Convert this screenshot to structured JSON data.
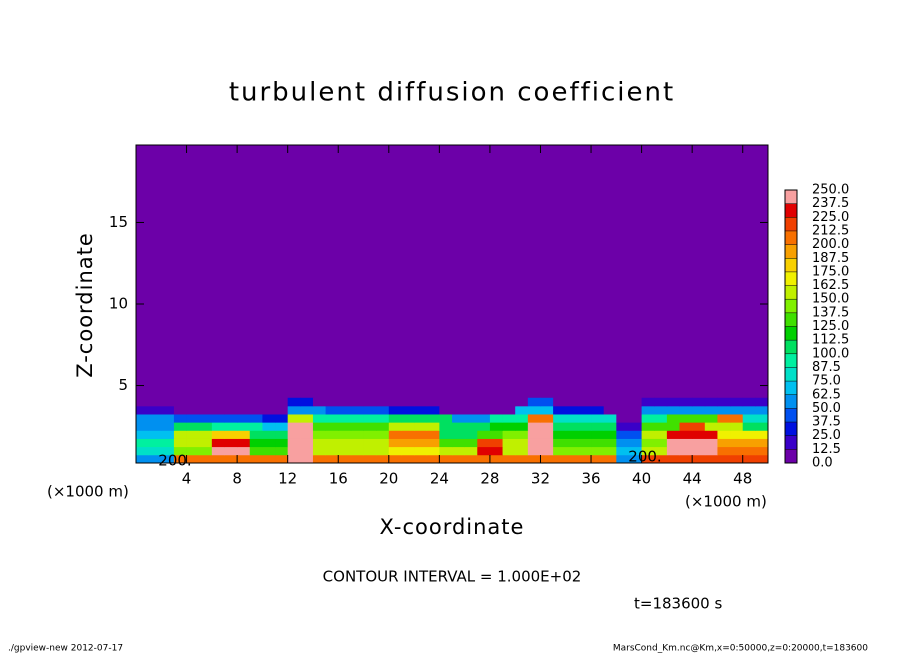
{
  "chart_data": {
    "type": "heatmap",
    "title": "turbulent diffusion coefficient",
    "x_label": "X-coordinate",
    "y_label": "Z-coordinate",
    "x_unit": "(×1000 m)",
    "y_unit": "(×1000 m)",
    "contour_interval": "CONTOUR INTERVAL = 1.000E+02",
    "time_label": "t=183600 s",
    "footer_left": "./gpview-new  2012-07-17",
    "footer_right": "MarsCond_Km.nc@Km,x=0:50000,z=0:20000,t=183600",
    "contour_labels": [
      "200.",
      "200."
    ],
    "xlim": [
      0,
      50
    ],
    "ylim": [
      0.25,
      19.75
    ],
    "xticks": [
      4,
      8,
      12,
      16,
      20,
      24,
      28,
      32,
      36,
      40,
      44,
      48
    ],
    "yticks": [
      5,
      10,
      15
    ],
    "x": [
      0.5,
      1.5,
      2.5,
      3.5,
      4.5,
      5.5,
      6.5,
      7.5,
      8.5,
      9.5,
      10.5,
      11.5,
      12.5,
      13.5,
      14.5,
      15.5,
      16.5,
      17.5,
      18.5,
      19.5,
      20.5,
      21.5,
      22.5,
      23.5,
      24.5,
      25.5,
      26.5,
      27.5,
      28.5,
      29.5,
      30.5,
      31.5,
      32.5,
      33.5,
      34.5,
      35.5,
      36.5,
      37.5,
      38.5,
      39.5,
      40.5,
      41.5,
      42.5,
      43.5,
      44.5,
      45.5,
      46.5,
      47.5,
      48.5,
      49.5
    ],
    "y": [
      0.5,
      1,
      1.5,
      2,
      2.5,
      3,
      3.5,
      4
    ],
    "z": [
      [
        60,
        60,
        60,
        210,
        210,
        210,
        210,
        210,
        210,
        210,
        210,
        210,
        250,
        250,
        200,
        200,
        200,
        200,
        200,
        200,
        200,
        200,
        200,
        200,
        200,
        200,
        200,
        200,
        200,
        200,
        200,
        200,
        200,
        200,
        200,
        200,
        200,
        200,
        60,
        60,
        220,
        220,
        220,
        220,
        220,
        220,
        220,
        220,
        220,
        220
      ],
      [
        80,
        80,
        80,
        140,
        140,
        140,
        250,
        250,
        250,
        130,
        130,
        130,
        250,
        250,
        160,
        160,
        160,
        160,
        160,
        160,
        170,
        170,
        170,
        170,
        150,
        150,
        150,
        230,
        230,
        160,
        160,
        250,
        250,
        140,
        140,
        140,
        140,
        140,
        70,
        70,
        160,
        160,
        250,
        250,
        250,
        250,
        200,
        200,
        200,
        200
      ],
      [
        90,
        90,
        90,
        160,
        160,
        160,
        230,
        230,
        230,
        120,
        120,
        120,
        250,
        250,
        150,
        150,
        150,
        150,
        150,
        150,
        190,
        190,
        190,
        190,
        130,
        130,
        130,
        220,
        220,
        150,
        150,
        250,
        250,
        130,
        130,
        130,
        130,
        130,
        60,
        60,
        140,
        140,
        240,
        240,
        240,
        240,
        190,
        190,
        190,
        190
      ],
      [
        70,
        70,
        70,
        150,
        150,
        150,
        180,
        180,
        180,
        100,
        100,
        100,
        250,
        250,
        140,
        140,
        140,
        140,
        140,
        140,
        200,
        200,
        200,
        200,
        110,
        110,
        110,
        130,
        130,
        140,
        140,
        250,
        250,
        120,
        120,
        120,
        120,
        120,
        40,
        40,
        150,
        150,
        230,
        230,
        230,
        230,
        170,
        170,
        170,
        170
      ],
      [
        60,
        60,
        60,
        110,
        110,
        110,
        90,
        90,
        90,
        90,
        70,
        70,
        240,
        240,
        130,
        130,
        130,
        130,
        130,
        130,
        150,
        150,
        150,
        150,
        100,
        100,
        100,
        100,
        120,
        120,
        120,
        250,
        250,
        110,
        110,
        110,
        110,
        110,
        20,
        20,
        130,
        130,
        130,
        220,
        220,
        160,
        160,
        160,
        110,
        110
      ],
      [
        50,
        50,
        50,
        40,
        40,
        40,
        40,
        40,
        40,
        40,
        30,
        30,
        150,
        150,
        90,
        90,
        90,
        90,
        90,
        90,
        110,
        110,
        110,
        110,
        110,
        60,
        60,
        60,
        90,
        90,
        90,
        200,
        200,
        80,
        80,
        80,
        80,
        80,
        10,
        10,
        90,
        90,
        130,
        130,
        130,
        130,
        210,
        210,
        80,
        80
      ],
      [
        20,
        20,
        20,
        0,
        0,
        0,
        0,
        0,
        0,
        0,
        0,
        0,
        60,
        60,
        60,
        40,
        40,
        40,
        40,
        40,
        30,
        30,
        30,
        30,
        0,
        0,
        0,
        0,
        0,
        0,
        70,
        70,
        70,
        25,
        25,
        25,
        25,
        0,
        0,
        0,
        55,
        55,
        55,
        55,
        55,
        55,
        55,
        55,
        55,
        55
      ],
      [
        0,
        0,
        0,
        0,
        0,
        0,
        0,
        0,
        0,
        0,
        0,
        0,
        30,
        30,
        0,
        0,
        10,
        10,
        10,
        0,
        0,
        0,
        0,
        0,
        0,
        0,
        0,
        0,
        0,
        0,
        0,
        40,
        40,
        0,
        0,
        0,
        0,
        0,
        0,
        0,
        20,
        20,
        20,
        20,
        20,
        20,
        20,
        20,
        20,
        20
      ]
    ],
    "levels": [
      {
        "value": 0,
        "label": "0.0"
      },
      12.5,
      {
        "value": 25,
        "label": "25.0"
      },
      37.5,
      {
        "value": 50,
        "label": "50.0"
      },
      62.5,
      {
        "value": 75,
        "label": "75.0"
      },
      87.5,
      {
        "value": 100,
        "label": "100.0"
      },
      112.5,
      {
        "value": 125,
        "label": "125.0"
      },
      137.5,
      {
        "value": 150,
        "label": "150.0"
      },
      162.5,
      {
        "value": 175,
        "label": "175.0"
      },
      187.5,
      {
        "value": 200,
        "label": "200.0"
      },
      212.5,
      {
        "value": 225,
        "label": "225.0"
      },
      237.5,
      {
        "value": 250,
        "label": "250.0"
      }
    ],
    "colors": [
      "#6c00a8",
      "#3a00c8",
      "#0010e0",
      "#0050f0",
      "#0090f0",
      "#00c0f0",
      "#00e0c8",
      "#00f0a0",
      "#00e060",
      "#00d000",
      "#40e000",
      "#80f000",
      "#c0f000",
      "#f0f000",
      "#f8d000",
      "#f8a000",
      "#f87000",
      "#f04000",
      "#e00000",
      "#f8a0a0"
    ]
  }
}
